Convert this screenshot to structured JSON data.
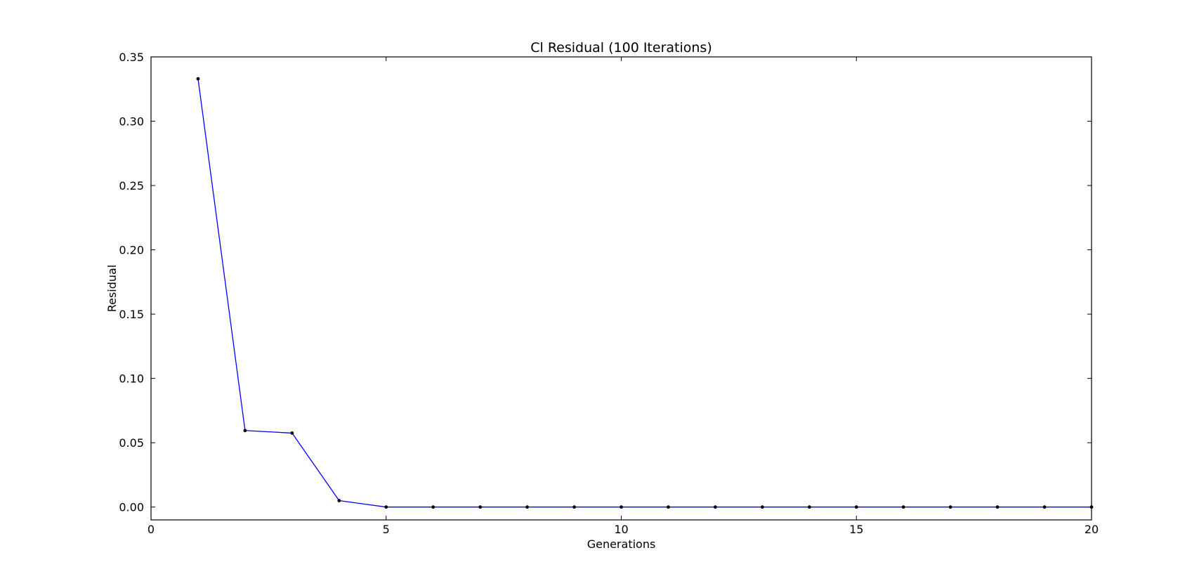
{
  "chart_data": {
    "type": "line",
    "title": "Cl Residual (100 Iterations)",
    "xlabel": "Generations",
    "ylabel": "Residual",
    "xlim": [
      0,
      20
    ],
    "ylim": [
      -0.01,
      0.35
    ],
    "xticks": [
      0,
      5,
      10,
      15,
      20
    ],
    "xtick_labels": [
      "0",
      "5",
      "10",
      "15",
      "20"
    ],
    "yticks": [
      0.0,
      0.05,
      0.1,
      0.15,
      0.2,
      0.25,
      0.3,
      0.35
    ],
    "ytick_labels": [
      "0.00",
      "0.05",
      "0.10",
      "0.15",
      "0.20",
      "0.25",
      "0.30",
      "0.35"
    ],
    "grid": false,
    "legend": "none",
    "series": [
      {
        "line_color": "#0000ff",
        "marker_color": "#000000",
        "x": [
          1,
          2,
          3,
          4,
          5,
          6,
          7,
          8,
          9,
          10,
          11,
          12,
          13,
          14,
          15,
          16,
          17,
          18,
          19,
          20
        ],
        "y": [
          0.333,
          0.0595,
          0.0575,
          0.005,
          0.0,
          0.0,
          0.0,
          0.0,
          0.0,
          0.0,
          0.0,
          0.0,
          0.0,
          0.0,
          0.0,
          0.0,
          0.0,
          0.0,
          0.0,
          0.0
        ]
      }
    ]
  }
}
